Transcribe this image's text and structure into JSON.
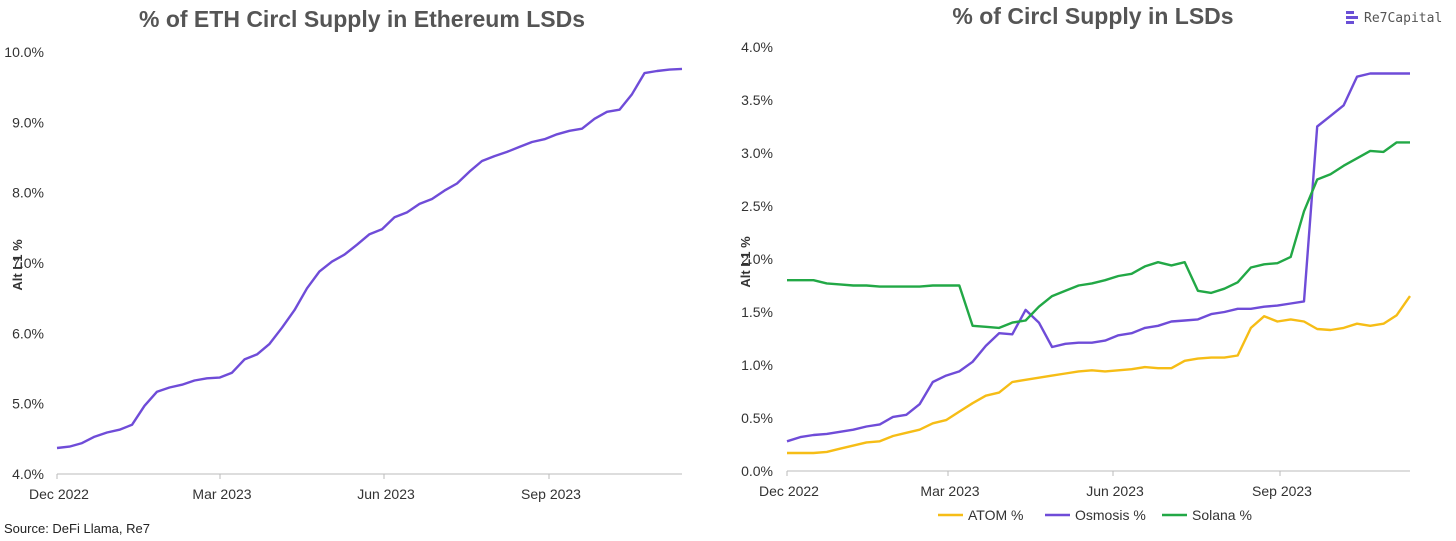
{
  "source_text": "Source: DeFi Llama, Re7",
  "logo": {
    "text": "Re7Capital",
    "icon": "re7-logo-icon"
  },
  "colors": {
    "eth": "#6f4cd8",
    "atom": "#f6bd16",
    "osmosis": "#6f4cd8",
    "solana": "#22a846",
    "axis": "#bbbbbb",
    "title": "#555555"
  },
  "chart_data": [
    {
      "type": "line",
      "title": "% of ETH Circl Supply in Ethereum LSDs",
      "xlabel": "",
      "ylabel": "Alt L1 %",
      "x_ticks": [
        "Dec 2022",
        "Mar 2023",
        "Jun 2023",
        "Sep 2023"
      ],
      "y_ticks": [
        "4.0%",
        "5.0%",
        "6.0%",
        "7.0%",
        "8.0%",
        "9.0%",
        "10.0%"
      ],
      "ylim": [
        4.0,
        10.0
      ],
      "xlim": [
        0,
        54
      ],
      "grid": false,
      "series": [
        {
          "color": "#6f4cd8",
          "x": [
            0,
            1,
            2,
            3,
            4,
            5,
            6,
            7,
            8,
            9,
            10,
            11,
            12,
            13,
            14,
            15,
            16,
            17,
            18,
            19,
            20,
            21,
            22,
            23,
            24,
            25,
            26,
            27,
            28,
            29,
            30,
            31,
            32,
            33,
            34,
            35,
            36,
            37,
            38,
            39,
            40,
            41,
            42,
            43,
            44,
            45,
            46,
            47,
            48,
            49,
            50,
            51,
            52,
            53,
            54
          ],
          "values": [
            4.37,
            4.39,
            4.44,
            4.53,
            4.59,
            4.63,
            4.7,
            4.97,
            5.17,
            5.23,
            5.27,
            5.33,
            5.36,
            5.37,
            5.44,
            5.63,
            5.7,
            5.85,
            6.08,
            6.33,
            6.64,
            6.88,
            7.02,
            7.12,
            7.26,
            7.41,
            7.48,
            7.65,
            7.72,
            7.84,
            7.91,
            8.03,
            8.13,
            8.3,
            8.45,
            8.52,
            8.58,
            8.65,
            8.72,
            8.76,
            8.83,
            8.88,
            8.91,
            9.05,
            9.15,
            9.18,
            9.4,
            9.7,
            9.73,
            9.75,
            9.76,
            9.76,
            9.76,
            9.76,
            9.76
          ]
        }
      ]
    },
    {
      "type": "line",
      "title": "% of Circl Supply in LSDs",
      "xlabel": "",
      "ylabel": "Alt L1 %",
      "x_ticks": [
        "Dec 2022",
        "Mar 2023",
        "Jun 2023",
        "Sep 2023"
      ],
      "y_ticks": [
        "0.0%",
        "0.5%",
        "1.0%",
        "1.5%",
        "2.0%",
        "2.5%",
        "3.0%",
        "3.5%",
        "4.0%"
      ],
      "ylim": [
        0.0,
        4.0
      ],
      "xlim": [
        0,
        54
      ],
      "grid": false,
      "legend": "bottom",
      "series": [
        {
          "name": "ATOM %",
          "color": "#f6bd16",
          "x": [
            0,
            1,
            2,
            3,
            4,
            5,
            6,
            7,
            8,
            9,
            10,
            11,
            12,
            13,
            14,
            15,
            16,
            17,
            18,
            19,
            20,
            21,
            22,
            23,
            24,
            25,
            26,
            27,
            28,
            29,
            30,
            31,
            32,
            33,
            34,
            35,
            36,
            37,
            38,
            39,
            40,
            41,
            42,
            43,
            44,
            45,
            46,
            47,
            48,
            49,
            50,
            51,
            52,
            53,
            54
          ],
          "values": [
            0.17,
            0.17,
            0.17,
            0.18,
            0.21,
            0.24,
            0.27,
            0.28,
            0.33,
            0.36,
            0.39,
            0.45,
            0.48,
            0.56,
            0.64,
            0.71,
            0.74,
            0.84,
            0.86,
            0.88,
            0.9,
            0.92,
            0.94,
            0.95,
            0.94,
            0.95,
            0.96,
            0.98,
            0.97,
            0.97,
            1.04,
            1.06,
            1.07,
            1.07,
            1.09,
            1.35,
            1.46,
            1.41,
            1.43,
            1.41,
            1.34,
            1.33,
            1.35,
            1.39,
            1.37,
            1.39,
            1.47,
            1.65,
            1.65,
            1.65,
            1.65,
            1.65,
            1.65,
            1.65,
            1.65
          ]
        },
        {
          "name": "Osmosis %",
          "color": "#6f4cd8",
          "x": [
            0,
            1,
            2,
            3,
            4,
            5,
            6,
            7,
            8,
            9,
            10,
            11,
            12,
            13,
            14,
            15,
            16,
            17,
            18,
            19,
            20,
            21,
            22,
            23,
            24,
            25,
            26,
            27,
            28,
            29,
            30,
            31,
            32,
            33,
            34,
            35,
            36,
            37,
            38,
            39,
            40,
            41,
            42,
            43,
            44,
            45,
            46,
            47,
            48,
            49,
            50,
            51,
            52,
            53,
            54
          ],
          "values": [
            0.28,
            0.32,
            0.34,
            0.35,
            0.37,
            0.39,
            0.42,
            0.44,
            0.51,
            0.53,
            0.63,
            0.84,
            0.9,
            0.94,
            1.03,
            1.18,
            1.3,
            1.29,
            1.52,
            1.4,
            1.17,
            1.2,
            1.21,
            1.21,
            1.23,
            1.28,
            1.3,
            1.35,
            1.37,
            1.41,
            1.42,
            1.43,
            1.48,
            1.5,
            1.53,
            1.53,
            1.55,
            1.56,
            1.58,
            1.6,
            3.25,
            3.35,
            3.45,
            3.72,
            3.75,
            3.75,
            3.75,
            3.75,
            3.75,
            3.75,
            3.75,
            3.75,
            3.75,
            3.75,
            3.75
          ]
        },
        {
          "name": "Solana %",
          "color": "#22a846",
          "x": [
            0,
            1,
            2,
            3,
            4,
            5,
            6,
            7,
            8,
            9,
            10,
            11,
            12,
            13,
            14,
            15,
            16,
            17,
            18,
            19,
            20,
            21,
            22,
            23,
            24,
            25,
            26,
            27,
            28,
            29,
            30,
            31,
            32,
            33,
            34,
            35,
            36,
            37,
            38,
            39,
            40,
            41,
            42,
            43,
            44,
            45,
            46,
            47,
            48,
            49,
            50,
            51,
            52,
            53,
            54
          ],
          "values": [
            1.8,
            1.8,
            1.8,
            1.77,
            1.76,
            1.75,
            1.75,
            1.74,
            1.74,
            1.74,
            1.74,
            1.75,
            1.75,
            1.75,
            1.37,
            1.36,
            1.35,
            1.4,
            1.42,
            1.55,
            1.65,
            1.7,
            1.75,
            1.77,
            1.8,
            1.84,
            1.86,
            1.93,
            1.97,
            1.94,
            1.97,
            1.7,
            1.68,
            1.72,
            1.78,
            1.92,
            1.95,
            1.96,
            2.02,
            2.45,
            2.75,
            2.8,
            2.88,
            2.95,
            3.02,
            3.01,
            3.1,
            3.1,
            3.1,
            3.1,
            3.1,
            3.1,
            3.1,
            3.1,
            3.1
          ]
        }
      ]
    }
  ]
}
